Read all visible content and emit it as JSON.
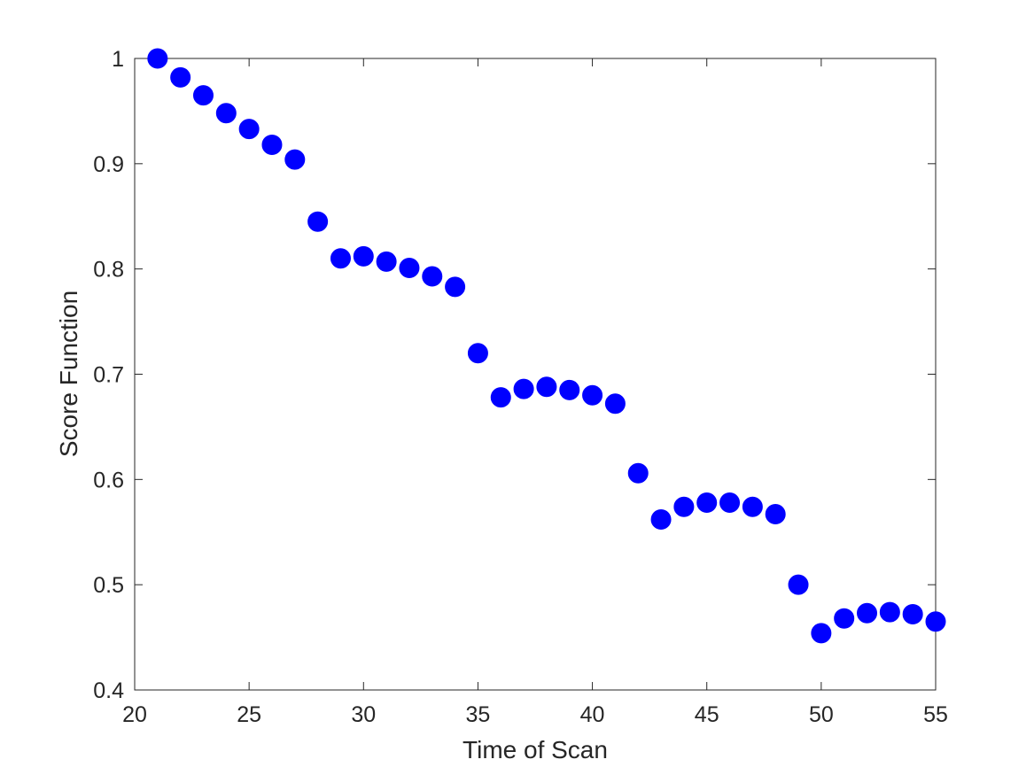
{
  "chart_data": {
    "type": "scatter",
    "title": "",
    "xlabel": "Time of Scan",
    "ylabel": "Score Function",
    "xlim": [
      20,
      55
    ],
    "ylim": [
      0.4,
      1.0
    ],
    "xticks": [
      20,
      25,
      30,
      35,
      40,
      45,
      50,
      55
    ],
    "xtick_labels": [
      "20",
      "25",
      "30",
      "35",
      "40",
      "45",
      "50",
      "55"
    ],
    "yticks": [
      0.4,
      0.5,
      0.6,
      0.7,
      0.8,
      0.9,
      1.0
    ],
    "ytick_labels": [
      "0.4",
      "0.5",
      "0.6",
      "0.7",
      "0.8",
      "0.9",
      "1"
    ],
    "grid": false,
    "legend": false,
    "marker_color": "#0000ff",
    "x": [
      21,
      22,
      23,
      24,
      25,
      26,
      27,
      28,
      29,
      30,
      31,
      32,
      33,
      34,
      35,
      36,
      37,
      38,
      39,
      40,
      41,
      42,
      43,
      44,
      45,
      46,
      47,
      48,
      49,
      50,
      51,
      52,
      53,
      54,
      55
    ],
    "y": [
      1.0,
      0.982,
      0.965,
      0.948,
      0.933,
      0.918,
      0.904,
      0.845,
      0.81,
      0.812,
      0.807,
      0.801,
      0.793,
      0.783,
      0.72,
      0.678,
      0.686,
      0.688,
      0.685,
      0.68,
      0.672,
      0.606,
      0.562,
      0.574,
      0.578,
      0.578,
      0.574,
      0.567,
      0.5,
      0.454,
      0.468,
      0.473,
      0.474,
      0.472,
      0.465
    ]
  }
}
